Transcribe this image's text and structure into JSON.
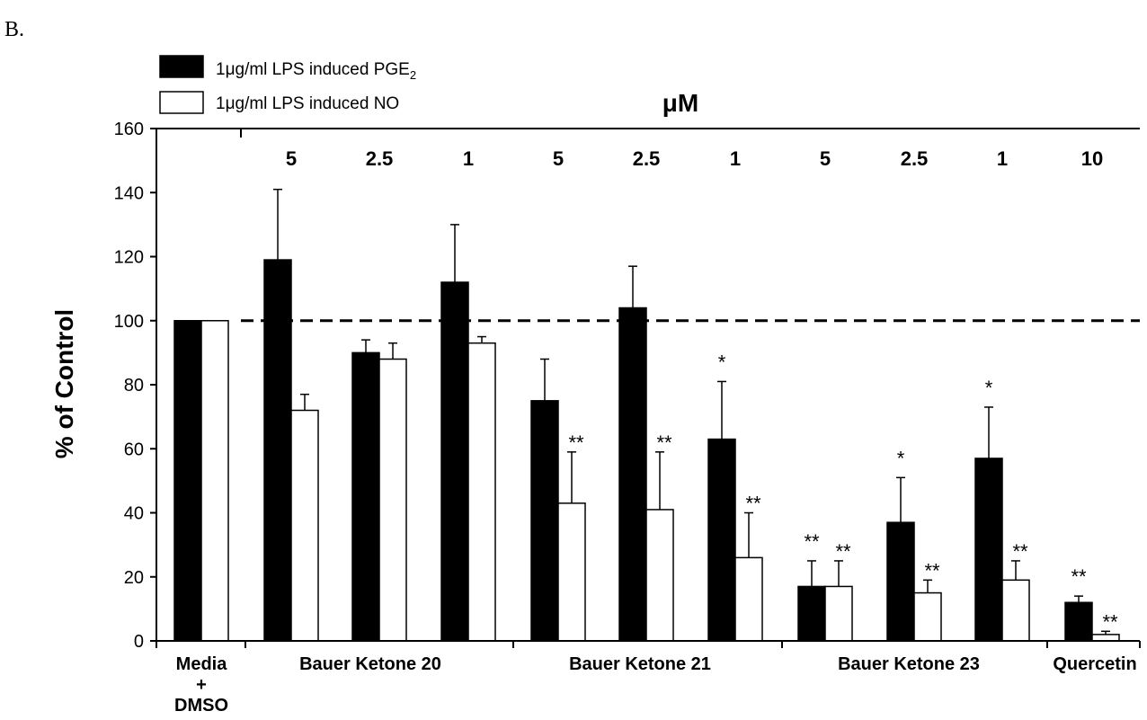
{
  "panel_label": "B.",
  "chart_data": {
    "type": "bar",
    "ylabel": "% of Control",
    "unit_label": "μM",
    "ylim": [
      0,
      160
    ],
    "yticks": [
      0,
      20,
      40,
      60,
      80,
      100,
      120,
      140,
      160
    ],
    "reference_line": 100,
    "legend": {
      "placement": "top-left",
      "entries": [
        {
          "prefix": "1μg/ml LPS induced PGE",
          "sub": "2",
          "fill": "#000000"
        },
        {
          "prefix": "1μg/ml LPS induced NO",
          "sub": "",
          "fill": "#ffffff"
        }
      ]
    },
    "series": [
      {
        "name": "1μg/ml LPS induced PGE2",
        "fill": "#000000",
        "values": [
          100,
          119,
          90,
          112,
          75,
          104,
          63,
          17,
          37,
          57,
          12
        ],
        "errors": [
          0,
          22,
          4,
          18,
          13,
          13,
          18,
          8,
          14,
          16,
          2
        ]
      },
      {
        "name": "1μg/ml LPS induced NO",
        "fill": "#ffffff",
        "values": [
          100,
          72,
          88,
          93,
          43,
          41,
          26,
          17,
          15,
          19,
          2
        ],
        "errors": [
          0,
          5,
          5,
          2,
          16,
          18,
          14,
          8,
          4,
          6,
          1
        ]
      }
    ],
    "doses": [
      "",
      "5",
      "2.5",
      "1",
      "5",
      "2.5",
      "1",
      "5",
      "2.5",
      "1",
      "10"
    ],
    "significance": [
      {
        "pge": "",
        "no": ""
      },
      {
        "pge": "",
        "no": ""
      },
      {
        "pge": "",
        "no": ""
      },
      {
        "pge": "",
        "no": ""
      },
      {
        "pge": "",
        "no": "**"
      },
      {
        "pge": "",
        "no": "**"
      },
      {
        "pge": "*",
        "no": "**"
      },
      {
        "pge": "**",
        "no": "**"
      },
      {
        "pge": "*",
        "no": "**"
      },
      {
        "pge": "*",
        "no": "**"
      },
      {
        "pge": "**",
        "no": "**"
      }
    ],
    "groups": [
      {
        "lines": [
          "Media",
          "+",
          "DMSO"
        ]
      },
      {
        "lines": [
          "Bauer Ketone 20"
        ]
      },
      {
        "lines": [
          "Bauer Ketone 21"
        ]
      },
      {
        "lines": [
          "Bauer Ketone 23"
        ]
      },
      {
        "lines": [
          "Quercetin"
        ]
      }
    ]
  }
}
